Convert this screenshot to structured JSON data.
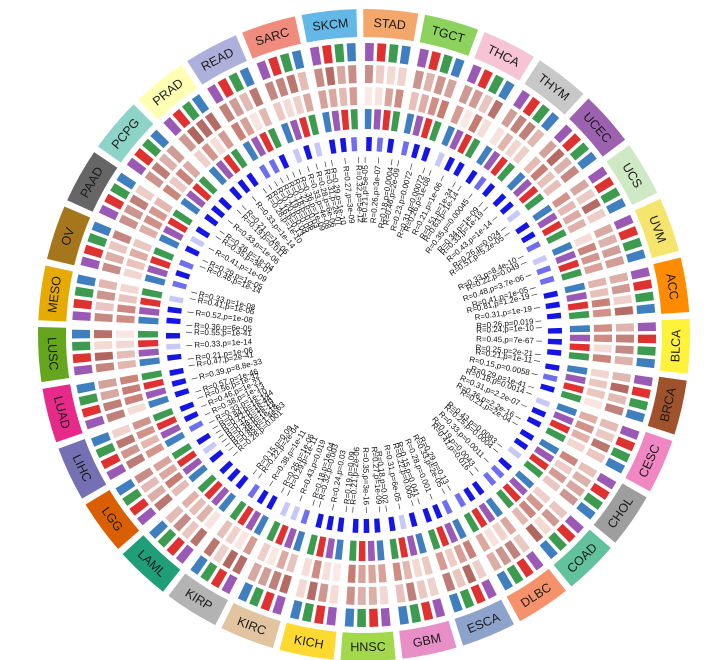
{
  "chart_data": {
    "type": "circular-heatmap",
    "title": "",
    "legend": "none",
    "sectors": [
      {
        "name": "READ",
        "color": "#aeb0dc"
      },
      {
        "name": "SARC",
        "color": "#f08c7e"
      },
      {
        "name": "SKCM",
        "color": "#63b8e8"
      },
      {
        "name": "STAD",
        "color": "#f3a76a"
      },
      {
        "name": "TGCT",
        "color": "#8dd25d"
      },
      {
        "name": "THCA",
        "color": "#f7c4d6"
      },
      {
        "name": "THYM",
        "color": "#c8c8c8"
      },
      {
        "name": "UCEC",
        "color": "#9c62b0"
      },
      {
        "name": "UCS",
        "color": "#cfe9c4"
      },
      {
        "name": "UVM",
        "color": "#f5e56c"
      },
      {
        "name": "ACC",
        "color": "#ff8c00"
      },
      {
        "name": "BLCA",
        "color": "#fff23a"
      },
      {
        "name": "BRCA",
        "color": "#a0522d"
      },
      {
        "name": "CESC",
        "color": "#f086c2"
      },
      {
        "name": "CHOL",
        "color": "#9e9e9e"
      },
      {
        "name": "COAD",
        "color": "#62c29e"
      },
      {
        "name": "DLBC",
        "color": "#f6926b"
      },
      {
        "name": "ESCA",
        "color": "#8ea3cc"
      },
      {
        "name": "GBM",
        "color": "#e88fc8"
      },
      {
        "name": "HNSC",
        "color": "#a4d84c"
      },
      {
        "name": "KICH",
        "color": "#ffd92f"
      },
      {
        "name": "KIRC",
        "color": "#e2c4a0"
      },
      {
        "name": "KIRP",
        "color": "#b3b3b3"
      },
      {
        "name": "LAML",
        "color": "#1f9e77"
      },
      {
        "name": "LGG",
        "color": "#da5f02"
      },
      {
        "name": "LIHC",
        "color": "#7570b4"
      },
      {
        "name": "LUAD",
        "color": "#e7298a"
      },
      {
        "name": "LUSC",
        "color": "#66a61e"
      },
      {
        "name": "MESO",
        "color": "#e6ab02"
      },
      {
        "name": "OV",
        "color": "#a6761d"
      },
      {
        "name": "PAAD",
        "color": "#666666"
      },
      {
        "name": "PCPG",
        "color": "#8dd3c7"
      },
      {
        "name": "PRAD",
        "color": "#ffffb3"
      }
    ],
    "group_colors": [
      "#9b59b6",
      "#e03131",
      "#3d9b4f",
      "#3f7fbf"
    ],
    "correlations": [
      {
        "cancer": "READ",
        "labels": [
          "R=0.16,p=0.13",
          "R=0.20,p=0.04",
          "R=0.19,p=0.05",
          "R=0.18,p=0.06",
          "R=0.22,p=0.03"
        ]
      },
      {
        "cancer": "SARC",
        "labels": [
          "R=0.36,p=1e-09",
          "R=0.33,p=4e-08",
          "R=0.28,p=6e-06",
          "R=0.31,p=2e-07"
        ]
      },
      {
        "cancer": "SKCM",
        "labels": [
          "R=0.29,p=1e-10",
          "R=0.27,p=3e-09",
          "R=0.32,p=5e-12"
        ]
      },
      {
        "cancer": "STAD",
        "labels": [
          "R=0.21,p=5e-05",
          "R=0.26,p=3e-07",
          "R=0.18,p=0.0004"
        ]
      },
      {
        "cancer": "TGCT",
        "labels": [
          "R=0.46,p=2e-09",
          "R=0.23,p=0.0072",
          "R=0.31,p=0.00072"
        ]
      },
      {
        "cancer": "THCA",
        "labels": [
          "R=0.26,p=1e-08",
          "R=0.21,p=1e-06",
          "R=0.51,p=1e-34"
        ]
      },
      {
        "cancer": "THYM",
        "labels": [
          "R=0.63,p=1e-14",
          "R=0.35,p=0.00045",
          "R=0.34,p=1e-09"
        ]
      },
      {
        "cancer": "UCEC",
        "labels": [
          "R=0.33,p=1e-19",
          "R=0.43,p=1e-14",
          "R=0.26,p=0.024"
        ]
      },
      {
        "cancer": "UCS",
        "labels": [
          "R=0.51,p=5.2e-05",
          "R=0.33,p=8.4e-10"
        ]
      },
      {
        "cancer": "UVM",
        "labels": [
          "R=0.22,p=0.049",
          "R=0.48,p=3.7e-06",
          "R=0.41,p=1e-05"
        ]
      },
      {
        "cancer": "ACC",
        "labels": [
          "R=0.81,p=1.2e-19",
          "R=0.31,p=1e-19",
          "R=0.26,p=0.019"
        ]
      },
      {
        "cancer": "BLCA",
        "labels": [
          "R=0.24,p=1e-10",
          "R=0.45,p=7e-67",
          "R=0.25,p=2e-21"
        ]
      },
      {
        "cancer": "BRCA",
        "labels": [
          "R=0.21,p=1e-11",
          "R=0.15,p=0.0058",
          "R=0.29,p=1e-41"
        ]
      },
      {
        "cancer": "CESC",
        "labels": [
          "R=0.18,p=0.0014",
          "R=0.31,p=2.2e-07",
          "R=0.36,p=2.2e-16"
        ]
      },
      {
        "cancer": "CHOL",
        "labels": [
          "R=0.21,p=2e-04",
          "R=0.43,p=0.0083"
        ]
      },
      {
        "cancer": "COAD",
        "labels": [
          "R=0.25,p=0.0004",
          "R=0.33,p=0.0011",
          "R=0.19,p=0.0043"
        ]
      },
      {
        "cancer": "DLBC",
        "labels": [
          "R=0.41,p=0.016",
          "R=0.29,p=0.13"
        ]
      },
      {
        "cancer": "ESCA",
        "labels": [
          "R=0.33,p=2e-05",
          "R=0.28,p=0.001",
          "R=0.15,p=0.041"
        ]
      },
      {
        "cancer": "GBM",
        "labels": [
          "R=0.22,p=0.005",
          "R=0.31,p=6e-05",
          "R=0.18,p=0.02"
        ]
      },
      {
        "cancer": "HNSC",
        "labels": [
          "R=0.27,p=1e-09",
          "R=0.35,p=3e-16",
          "R=0.21,p=2e-06"
        ]
      },
      {
        "cancer": "KICH",
        "labels": [
          "R=0.19,p=0.09",
          "R=0.24,p=0.03",
          "R=0.32,p=0.003"
        ]
      },
      {
        "cancer": "KIRC",
        "labels": [
          "R=0.18,p=1e-04",
          "R=0.43,p=0.019",
          "R=0.29,p=1e-11"
        ]
      },
      {
        "cancer": "KIRP",
        "labels": [
          "R=0.26,p=1e-06",
          "R=0.38,p=1e-11",
          "R=0.22,p=2e-04"
        ]
      },
      {
        "cancer": "LAML",
        "labels": [
          "R=0.15,p=0.09",
          "R=0.28,p=0.001"
        ]
      },
      {
        "cancer": "LGG",
        "labels": [
          "R=0.85,p=1.4e-63",
          "R=0.46,p=1e-18",
          "R=0.38,p=7e-12",
          "R=0.37,p=1e-10",
          "R=0.72,p=1e-44",
          "R=0.84,p=1e-144"
        ]
      },
      {
        "cancer": "LIHC",
        "labels": [
          "R=0.33,p=1e-10",
          "R=0.38,p=1e-13",
          "R=0.46,p=1e-21",
          "R=0.56,p=1e-32"
        ]
      },
      {
        "cancer": "LUAD",
        "labels": [
          "R=0.57,p=1e-46",
          "R=0.39,p=8.8e-33",
          "R=0.47,p=2e-41"
        ]
      },
      {
        "cancer": "LUSC",
        "labels": [
          "R=0.21,p=1e-06",
          "R=0.33,p=1e-14",
          "R=0.55,p=1e-41"
        ]
      },
      {
        "cancer": "MESO",
        "labels": [
          "R=0.36,p=6e-05",
          "R=0.52,p=1e-08",
          "R=0.41,p=1e-06"
        ]
      },
      {
        "cancer": "OV",
        "labels": [
          "R=0.33,p=1e-08",
          "R=0.46,p=1e-14"
        ]
      },
      {
        "cancer": "PAAD",
        "labels": [
          "R=0.29,p=1e-05",
          "R=0.41,p=1e-09",
          "R=0.35,p=3e-07"
        ]
      },
      {
        "cancer": "PCPG",
        "labels": [
          "R=0.26,p=1e-04",
          "R=0.33,p=1e-06",
          "R=0.19,p=0.011"
        ]
      },
      {
        "cancer": "PRAD",
        "labels": [
          "R=0.21,p=1e-06",
          "R=0.33,p=1e-14",
          "R=0.28,p=1e-10"
        ]
      }
    ]
  }
}
